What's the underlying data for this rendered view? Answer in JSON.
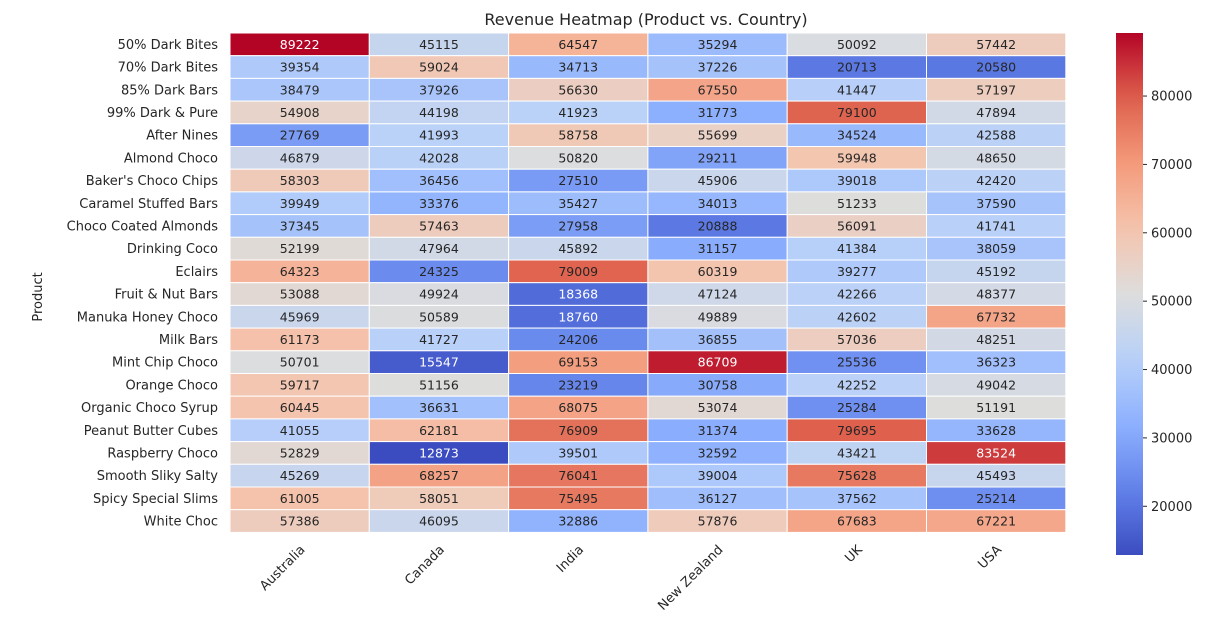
{
  "chart_data": {
    "type": "heatmap",
    "title": "Revenue Heatmap (Product vs. Country)",
    "ylabel": "Product",
    "xlabel": "",
    "colormap": "coolwarm",
    "columns": [
      "Australia",
      "Canada",
      "India",
      "New Zealand",
      "UK",
      "USA"
    ],
    "rows": [
      "50% Dark Bites",
      "70% Dark Bites",
      "85% Dark Bars",
      "99% Dark & Pure",
      "After Nines",
      "Almond Choco",
      "Baker's Choco Chips",
      "Caramel Stuffed Bars",
      "Choco Coated Almonds",
      "Drinking Coco",
      "Eclairs",
      "Fruit & Nut Bars",
      "Manuka Honey Choco",
      "Milk Bars",
      "Mint Chip Choco",
      "Orange Choco",
      "Organic Choco Syrup",
      "Peanut Butter Cubes",
      "Raspberry Choco",
      "Smooth Sliky Salty",
      "Spicy Special Slims",
      "White Choc"
    ],
    "values": [
      [
        89222,
        45115,
        64547,
        35294,
        50092,
        57442
      ],
      [
        39354,
        59024,
        34713,
        37226,
        20713,
        20580
      ],
      [
        38479,
        37926,
        56630,
        67550,
        41447,
        57197
      ],
      [
        54908,
        44198,
        41923,
        31773,
        79100,
        47894
      ],
      [
        27769,
        41993,
        58758,
        55699,
        34524,
        42588
      ],
      [
        46879,
        42028,
        50820,
        29211,
        59948,
        48650
      ],
      [
        58303,
        36456,
        27510,
        45906,
        39018,
        42420
      ],
      [
        39949,
        33376,
        35427,
        34013,
        51233,
        37590
      ],
      [
        37345,
        57463,
        27958,
        20888,
        56091,
        41741
      ],
      [
        52199,
        47964,
        45892,
        31157,
        41384,
        38059
      ],
      [
        64323,
        24325,
        79009,
        60319,
        39277,
        45192
      ],
      [
        53088,
        49924,
        18368,
        47124,
        42266,
        48377
      ],
      [
        45969,
        50589,
        18760,
        49889,
        42602,
        67732
      ],
      [
        61173,
        41727,
        24206,
        36855,
        57036,
        48251
      ],
      [
        50701,
        15547,
        69153,
        86709,
        25536,
        36323
      ],
      [
        59717,
        51156,
        23219,
        30758,
        42252,
        49042
      ],
      [
        60445,
        36631,
        68075,
        53074,
        25284,
        51191
      ],
      [
        41055,
        62181,
        76909,
        31374,
        79695,
        33628
      ],
      [
        52829,
        12873,
        39501,
        32592,
        43421,
        83524
      ],
      [
        45269,
        68257,
        76041,
        39004,
        75628,
        45493
      ],
      [
        61005,
        58051,
        75495,
        36127,
        37562,
        25214
      ],
      [
        57386,
        46095,
        32886,
        57876,
        67683,
        67221
      ]
    ],
    "vmin": 12873,
    "vmax": 89222,
    "colorbar_ticks": [
      20000,
      30000,
      40000,
      50000,
      60000,
      70000,
      80000
    ],
    "annotations": true
  }
}
